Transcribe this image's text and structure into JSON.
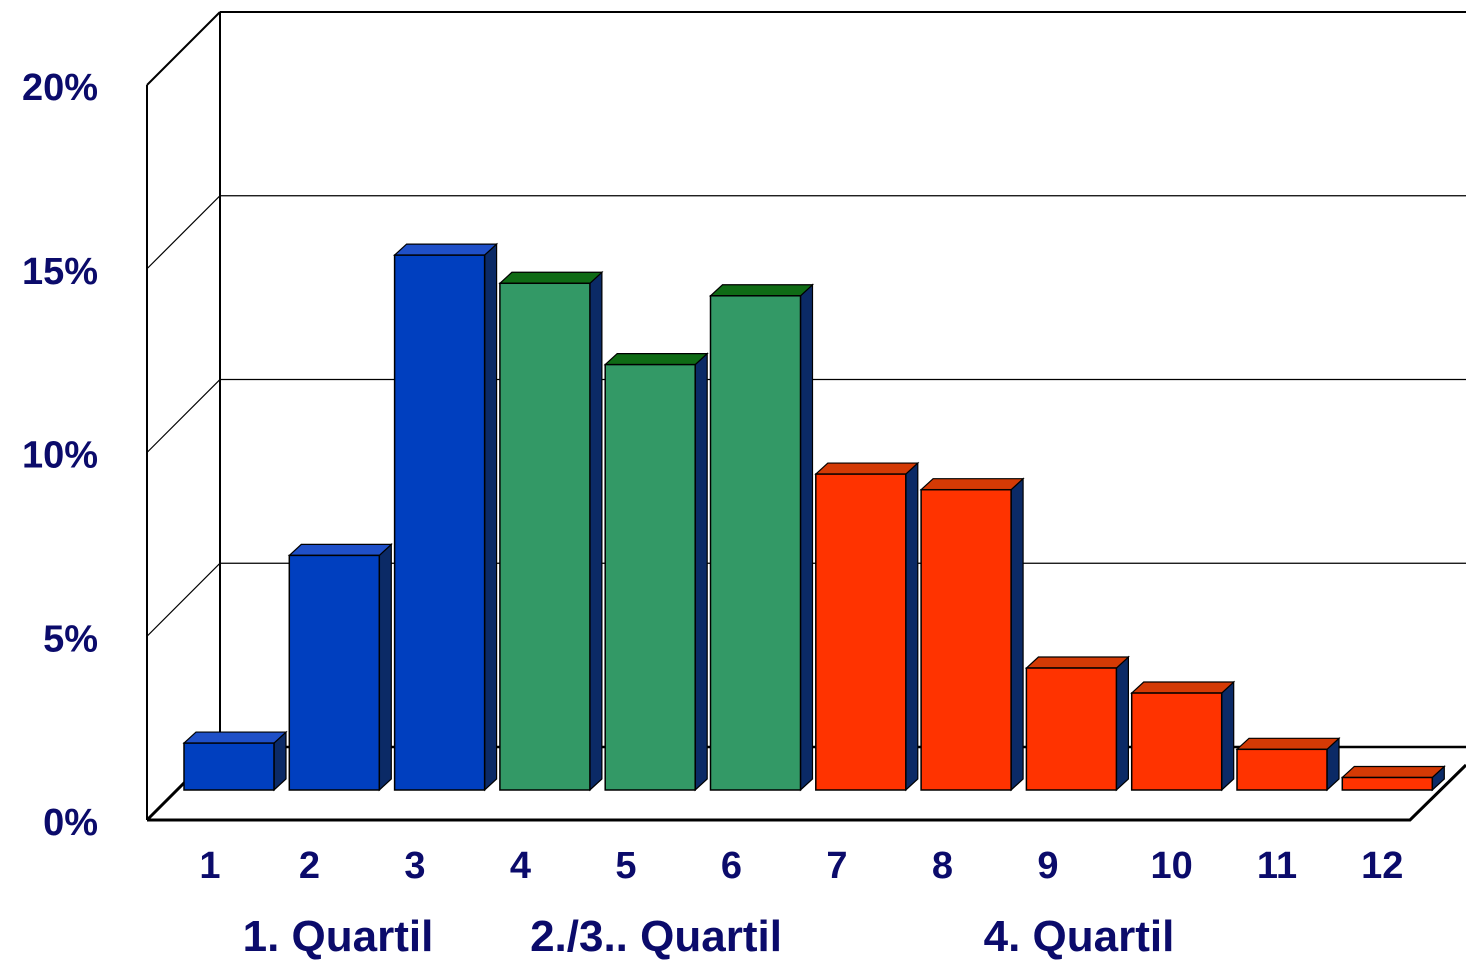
{
  "chart_data": {
    "type": "bar",
    "categories": [
      "1",
      "2",
      "3",
      "4",
      "5",
      "6",
      "7",
      "8",
      "9",
      "10",
      "11",
      "12"
    ],
    "values": [
      1.5,
      7.5,
      17.1,
      16.2,
      13.6,
      15.8,
      10.1,
      9.6,
      3.9,
      3.1,
      1.3,
      0.4
    ],
    "bar_groups": [
      "q1",
      "q1",
      "q1",
      "q23",
      "q23",
      "q23",
      "q4",
      "q4",
      "q4",
      "q4",
      "q4",
      "q4"
    ],
    "group_labels": [
      {
        "id": "q1",
        "label": "1. Quartil"
      },
      {
        "id": "q23",
        "label": "2./3.. Quartil"
      },
      {
        "id": "q4",
        "label": "4. Quartil"
      }
    ],
    "yticks": [
      "0%",
      "5%",
      "10%",
      "15%",
      "20%"
    ],
    "ytick_values": [
      0,
      5,
      10,
      15,
      20
    ],
    "ylim": [
      0,
      20
    ],
    "grid": true,
    "three_d": true,
    "colors": {
      "q1": {
        "front": "#003fbf",
        "top": "#1f50c8",
        "side": "#0b2a66"
      },
      "q23": {
        "front": "#339966",
        "top": "#0f6b15",
        "side": "#0b2a66"
      },
      "q4": {
        "front": "#ff3300",
        "top": "#d43a05",
        "side": "#0b2a66"
      },
      "text": "#0b0b6b"
    }
  }
}
